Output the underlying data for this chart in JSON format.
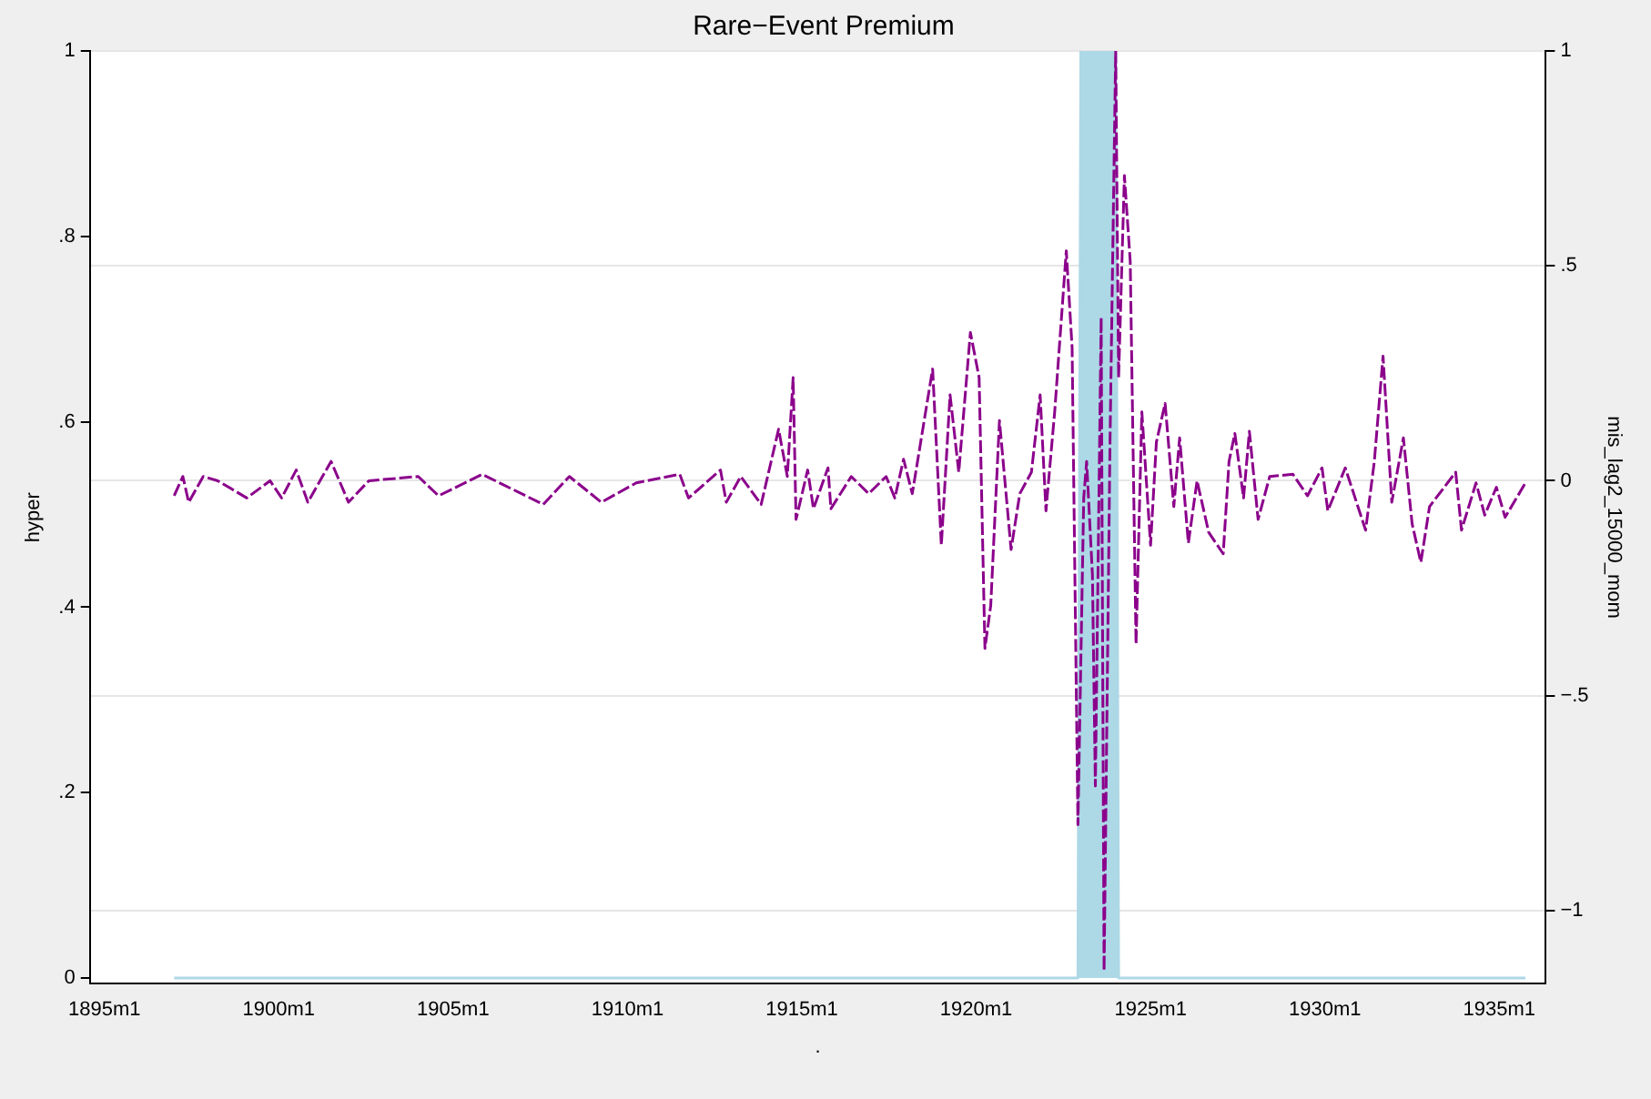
{
  "chart_data": {
    "type": "line",
    "title": "Rare−Event Premium",
    "xlabel": ".",
    "ylabel": "hyper",
    "y2label": "mis_lag2_15000_mom",
    "grid": "y2",
    "xlim": [
      "1894-08",
      "1936-05"
    ],
    "xticks": [
      {
        "value": "1895-01",
        "label": "1895m1"
      },
      {
        "value": "1900-01",
        "label": "1900m1"
      },
      {
        "value": "1905-01",
        "label": "1905m1"
      },
      {
        "value": "1910-01",
        "label": "1910m1"
      },
      {
        "value": "1915-01",
        "label": "1915m1"
      },
      {
        "value": "1920-01",
        "label": "1920m1"
      },
      {
        "value": "1925-01",
        "label": "1925m1"
      },
      {
        "value": "1930-01",
        "label": "1930m1"
      },
      {
        "value": "1935-01",
        "label": "1935m1"
      }
    ],
    "ylim": [
      -0.006,
      1
    ],
    "yticks": [
      0,
      {
        "value": 0.2,
        "label": ".2"
      },
      {
        "value": 0.4,
        "label": ".4"
      },
      {
        "value": 0.6,
        "label": ".6"
      },
      {
        "value": 0.8,
        "label": ".8"
      },
      1
    ],
    "y2lim": [
      -1.17,
      1
    ],
    "y2ticks": [
      {
        "value": -1,
        "label": "−1"
      },
      {
        "value": -0.5,
        "label": "−.5"
      },
      0,
      {
        "value": 0.5,
        "label": ".5"
      },
      1
    ],
    "series": [
      {
        "type": "area",
        "color": "#add8e6",
        "x": [
          "1897-01",
          "1922-12",
          "1923-01",
          "1924-01",
          "1924-02",
          "1935-10"
        ],
        "values": [
          0,
          0,
          1,
          1,
          0,
          0
        ]
      },
      {
        "axis": "y2",
        "line_style": "dashed",
        "color": "#8b008b",
        "x": [
          "1897-01",
          "1897-04",
          "1897-06",
          "1897-11",
          "1898-04",
          "1899-02",
          "1899-10",
          "1900-02",
          "1900-07",
          "1900-11",
          "1901-07",
          "1902-01",
          "1902-08",
          "1904-01",
          "1904-08",
          "1905-11",
          "1907-08",
          "1908-05",
          "1909-04",
          "1910-04",
          "1911-07",
          "1911-10",
          "1912-09",
          "1912-11",
          "1913-04",
          "1913-11",
          "1914-05",
          "1914-08",
          "1914-10",
          "1914-11",
          "1915-03",
          "1915-05",
          "1915-10",
          "1915-11",
          "1916-06",
          "1916-12",
          "1917-06",
          "1917-09",
          "1917-12",
          "1918-03",
          "1918-10",
          "1919-01",
          "1919-04",
          "1919-07",
          "1919-11",
          "1920-02",
          "1920-04",
          "1920-06",
          "1920-09",
          "1921-01",
          "1921-04",
          "1921-08",
          "1921-11",
          "1922-01",
          "1922-04",
          "1922-08",
          "1922-10",
          "1922-12",
          "1923-02",
          "1923-03",
          "1923-05",
          "1923-06",
          "1923-08",
          "1923-09",
          "1923-11",
          "1924-01",
          "1924-02",
          "1924-04",
          "1924-06",
          "1924-08",
          "1924-10",
          "1925-01",
          "1925-03",
          "1925-06",
          "1925-09",
          "1925-11",
          "1926-02",
          "1926-05",
          "1926-09",
          "1927-02",
          "1927-04",
          "1927-06",
          "1927-09",
          "1927-11",
          "1928-02",
          "1928-06",
          "1929-02",
          "1929-07",
          "1929-12",
          "1930-02",
          "1930-08",
          "1931-03",
          "1931-06",
          "1931-09",
          "1931-12",
          "1932-04",
          "1932-07",
          "1932-10",
          "1933-01",
          "1933-10",
          "1933-12",
          "1934-05",
          "1934-08",
          "1934-12",
          "1935-03",
          "1935-10"
        ],
        "values": [
          -0.035,
          0.01,
          -0.05,
          0.01,
          0,
          -0.04,
          0,
          -0.04,
          0.025,
          -0.05,
          0.045,
          -0.05,
          0,
          0.01,
          -0.035,
          0.015,
          -0.055,
          0.01,
          -0.05,
          -0.005,
          0.015,
          -0.04,
          0.025,
          -0.05,
          0.01,
          -0.055,
          0.12,
          0.01,
          0.24,
          -0.09,
          0.025,
          -0.065,
          0.03,
          -0.065,
          0.01,
          -0.03,
          0.01,
          -0.04,
          0.05,
          -0.03,
          0.26,
          -0.15,
          0.2,
          0.02,
          0.345,
          0.24,
          -0.39,
          -0.29,
          0.14,
          -0.16,
          -0.03,
          0.02,
          0.2,
          -0.07,
          0.16,
          0.535,
          0.31,
          -0.8,
          -0.04,
          0.045,
          -0.22,
          -0.71,
          0.38,
          -1.14,
          0.07,
          1.0,
          0.24,
          0.71,
          0.51,
          -0.38,
          0.16,
          -0.15,
          0.09,
          0.18,
          -0.06,
          0.1,
          -0.145,
          0,
          -0.12,
          -0.17,
          0.045,
          0.11,
          -0.04,
          0.115,
          -0.09,
          0.01,
          0.015,
          -0.035,
          0.03,
          -0.07,
          0.03,
          -0.115,
          0.045,
          0.29,
          -0.05,
          0.1,
          -0.1,
          -0.19,
          -0.06,
          0.02,
          -0.115,
          -0.005,
          -0.08,
          -0.015,
          -0.085,
          -0.005
        ]
      }
    ]
  }
}
